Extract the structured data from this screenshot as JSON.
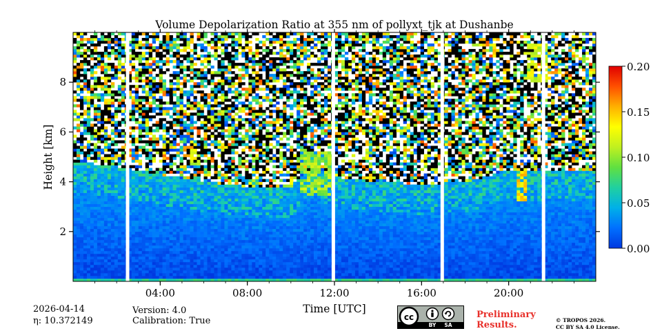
{
  "chart_data": {
    "type": "heatmap",
    "title": "Volume Depolarization Ratio at 355 nm of pollyxt_tjk at Dushanbe",
    "xlabel": "Time [UTC]",
    "ylabel": "Height [km]",
    "xlim_hours": [
      0,
      24
    ],
    "ylim_km": [
      0,
      10
    ],
    "x_ticks": [
      {
        "hour": 4,
        "label": "04:00"
      },
      {
        "hour": 8,
        "label": "08:00"
      },
      {
        "hour": 12,
        "label": "12:00"
      },
      {
        "hour": 16,
        "label": "16:00"
      },
      {
        "hour": 20,
        "label": "20:00"
      }
    ],
    "y_ticks": [
      {
        "km": 2,
        "label": "2"
      },
      {
        "km": 4,
        "label": "4"
      },
      {
        "km": 6,
        "label": "6"
      },
      {
        "km": 8,
        "label": "8"
      }
    ],
    "colorbar": {
      "range": [
        0.0,
        0.2
      ],
      "ticks": [
        {
          "value": 0.0,
          "label": "0.00"
        },
        {
          "value": 0.05,
          "label": "0.05"
        },
        {
          "value": 0.1,
          "label": "0.10"
        },
        {
          "value": 0.15,
          "label": "0.15"
        },
        {
          "value": 0.2,
          "label": "0.20"
        }
      ]
    },
    "data_gaps_hours": [
      2.5,
      11.95,
      16.95,
      21.6
    ],
    "aerosol_layer_top_km": [
      [
        0,
        4.8
      ],
      [
        2,
        4.6
      ],
      [
        4,
        4.3
      ],
      [
        6,
        4.0
      ],
      [
        8,
        3.8
      ],
      [
        10,
        3.8
      ],
      [
        11,
        4.6
      ],
      [
        12,
        4.2
      ],
      [
        14,
        4.0
      ],
      [
        16,
        3.9
      ],
      [
        18,
        4.0
      ],
      [
        19.3,
        4.3
      ],
      [
        20,
        4.5
      ],
      [
        22,
        4.4
      ],
      [
        24,
        4.5
      ]
    ],
    "features": [
      {
        "type": "depolarizing layer",
        "hour_range": [
          5.3,
          5.8
        ],
        "height_km": [
          4.7,
          5.3
        ],
        "value": 0.12
      },
      {
        "type": "depolarizing layer",
        "hour_range": [
          10.5,
          12.0
        ],
        "height_km": [
          3.5,
          5.2
        ],
        "value": 0.1
      },
      {
        "type": "depolarizing layer",
        "hour_range": [
          20.3,
          20.8
        ],
        "height_km": [
          3.2,
          4.6
        ],
        "value": 0.14
      },
      {
        "type": "cirrus",
        "hour_range": [
          19.3,
          19.5
        ],
        "height_km": [
          9.0,
          9.8
        ],
        "value": 0.14
      },
      {
        "type": "cirrus",
        "hour_range": [
          20.8,
          21.8
        ],
        "height_km": [
          8.0,
          9.5
        ],
        "value": 0.12
      }
    ]
  },
  "info": {
    "date": "2026-04-14",
    "eta": "η: 10.372149",
    "version": "Version: 4.0",
    "calibration": "Calibration: True",
    "preliminary": [
      "Preliminary",
      "Results."
    ],
    "license": [
      "© TROPOS 2026.",
      "CC BY SA 4.0 License."
    ]
  },
  "badge": {
    "cc": "cc",
    "by": "BY",
    "sa": "SA"
  },
  "colors": {
    "stops": [
      "#0038e0",
      "#0070ff",
      "#00b0e8",
      "#20d0a0",
      "#60e040",
      "#c0f020",
      "#ffff00",
      "#ffb000",
      "#ff5000",
      "#e00000"
    ],
    "text": "#000000",
    "preliminary": "#e8302a"
  }
}
